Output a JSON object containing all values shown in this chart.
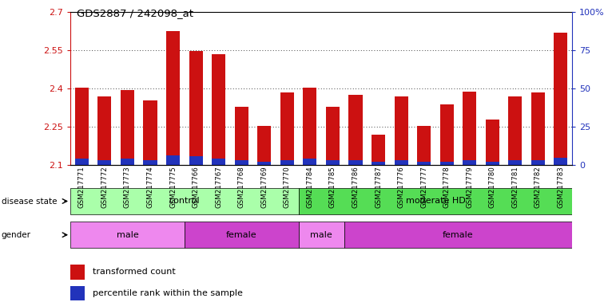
{
  "title": "GDS2887 / 242098_at",
  "samples": [
    "GSM217771",
    "GSM217772",
    "GSM217773",
    "GSM217774",
    "GSM217775",
    "GSM217766",
    "GSM217767",
    "GSM217768",
    "GSM217769",
    "GSM217770",
    "GSM217784",
    "GSM217785",
    "GSM217786",
    "GSM217787",
    "GSM217776",
    "GSM217777",
    "GSM217778",
    "GSM217779",
    "GSM217780",
    "GSM217781",
    "GSM217782",
    "GSM217783"
  ],
  "bar_values": [
    2.405,
    2.37,
    2.395,
    2.355,
    2.625,
    2.548,
    2.535,
    2.33,
    2.255,
    2.385,
    2.405,
    2.33,
    2.375,
    2.22,
    2.37,
    2.255,
    2.34,
    2.39,
    2.28,
    2.37,
    2.385,
    2.62
  ],
  "blue_values": [
    0.025,
    0.02,
    0.025,
    0.02,
    0.04,
    0.035,
    0.025,
    0.02,
    0.015,
    0.02,
    0.025,
    0.02,
    0.02,
    0.015,
    0.02,
    0.015,
    0.015,
    0.02,
    0.015,
    0.02,
    0.02,
    0.03
  ],
  "ymin": 2.1,
  "ymax": 2.7,
  "yticks": [
    2.1,
    2.25,
    2.4,
    2.55,
    2.7
  ],
  "right_yticks": [
    0,
    25,
    50,
    75,
    100
  ],
  "bar_color": "#cc1111",
  "blue_color": "#2233bb",
  "disease_groups": [
    {
      "label": "control",
      "start": 0,
      "end": 10,
      "color": "#aaffaa"
    },
    {
      "label": "moderate HD",
      "start": 10,
      "end": 22,
      "color": "#55dd55"
    }
  ],
  "gender_groups": [
    {
      "label": "male",
      "start": 0,
      "end": 5,
      "color": "#ee88ee"
    },
    {
      "label": "female",
      "start": 5,
      "end": 10,
      "color": "#cc44cc"
    },
    {
      "label": "male",
      "start": 10,
      "end": 12,
      "color": "#ee88ee"
    },
    {
      "label": "female",
      "start": 12,
      "end": 22,
      "color": "#cc44cc"
    }
  ],
  "disease_label": "disease state",
  "gender_label": "gender",
  "legend_red": "transformed count",
  "legend_blue": "percentile rank within the sample",
  "bar_width": 0.6,
  "background_color": "#ffffff"
}
